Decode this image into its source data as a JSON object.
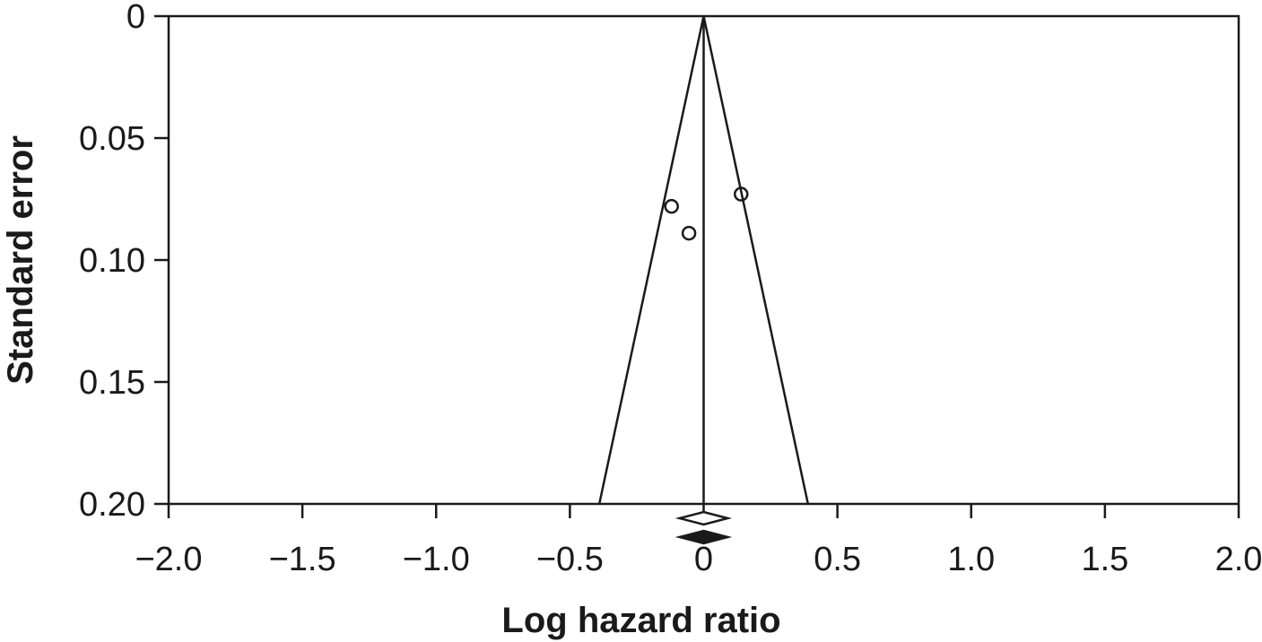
{
  "chart_data": {
    "type": "scatter",
    "subtype": "funnel plot",
    "xlabel": "Log hazard ratio",
    "ylabel": "Standard error",
    "xlim": [
      -2.0,
      2.0
    ],
    "ylim": [
      0,
      0.2
    ],
    "y_inverted": true,
    "x_ticks": [
      "−2.0",
      "−1.5",
      "−1.0",
      "−0.5",
      "0",
      "0.5",
      "1.0",
      "1.5",
      "2.0"
    ],
    "x_tick_values": [
      -2.0,
      -1.5,
      -1.0,
      -0.5,
      0,
      0.5,
      1.0,
      1.5,
      2.0
    ],
    "y_ticks": [
      "0",
      "0.05",
      "0.10",
      "0.15",
      "0.20"
    ],
    "y_tick_values": [
      0,
      0.05,
      0.1,
      0.15,
      0.2
    ],
    "grid": false,
    "points": [
      {
        "x": -0.12,
        "y": 0.078
      },
      {
        "x": -0.055,
        "y": 0.089
      },
      {
        "x": 0.14,
        "y": 0.073
      }
    ],
    "pooled_estimate": 0,
    "funnel": {
      "apex": {
        "x": 0,
        "y": 0
      },
      "base_left": {
        "x": -0.39,
        "y": 0.2
      },
      "base_right": {
        "x": 0.39,
        "y": 0.2
      }
    },
    "summary_diamonds": [
      {
        "style": "open",
        "center": 0,
        "half_width": 0.09
      },
      {
        "style": "filled",
        "center": 0,
        "half_width": 0.09
      }
    ]
  }
}
